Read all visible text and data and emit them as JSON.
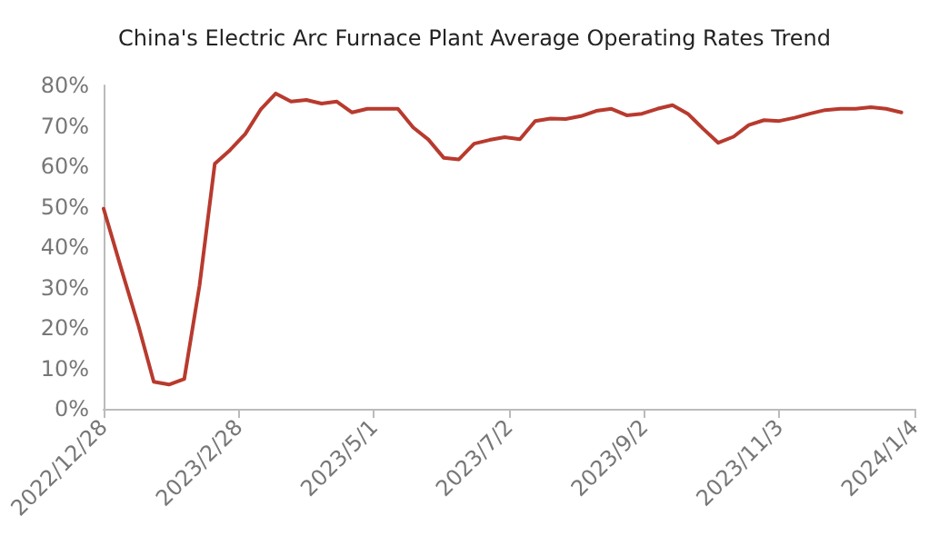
{
  "chart_data": {
    "type": "line",
    "title": "China's Electric Arc Furnace Plant Average Operating Rates Trend",
    "x": [
      "2022-12-28",
      "2023-01-06",
      "2023-01-13",
      "2023-01-20",
      "2023-01-27",
      "2023-02-03",
      "2023-02-10",
      "2023-02-17",
      "2023-02-24",
      "2023-03-03",
      "2023-03-10",
      "2023-03-17",
      "2023-03-24",
      "2023-03-31",
      "2023-04-07",
      "2023-04-14",
      "2023-04-21",
      "2023-04-28",
      "2023-05-05",
      "2023-05-12",
      "2023-05-19",
      "2023-05-26",
      "2023-06-02",
      "2023-06-09",
      "2023-06-16",
      "2023-06-23",
      "2023-06-30",
      "2023-07-07",
      "2023-07-14",
      "2023-07-21",
      "2023-07-28",
      "2023-08-04",
      "2023-08-11",
      "2023-08-18",
      "2023-08-25",
      "2023-09-01",
      "2023-09-08",
      "2023-09-15",
      "2023-09-22",
      "2023-09-29",
      "2023-10-06",
      "2023-10-13",
      "2023-10-20",
      "2023-10-27",
      "2023-11-03",
      "2023-11-10",
      "2023-11-17",
      "2023-11-24",
      "2023-12-01",
      "2023-12-08",
      "2023-12-15",
      "2023-12-22",
      "2023-12-29"
    ],
    "series": [
      {
        "color": "#b83a2e",
        "values": [
          49.5,
          33,
          20.5,
          6.7,
          6.0,
          7.4,
          30.5,
          60.6,
          64,
          68,
          74,
          78,
          76,
          76.4,
          75.5,
          76,
          73.3,
          74.2,
          74.2,
          74.2,
          69.6,
          66.6,
          62.1,
          61.7,
          65.6,
          66.5,
          67.2,
          66.7,
          71.2,
          71.8,
          71.7,
          72.4,
          73.7,
          74.2,
          72.6,
          73,
          74.2,
          75.1,
          73,
          69.3,
          65.8,
          67.3,
          70.2,
          71.4,
          71.2,
          72,
          73,
          73.9,
          74.2,
          74.2,
          74.6,
          74.2,
          73.3
        ]
      }
    ],
    "xlim": [
      "2022-12-28",
      "2024-01-04"
    ],
    "xticks": [
      {
        "value": "2022-12-28",
        "label": "2022/12/28"
      },
      {
        "value": "2023-02-28",
        "label": "2023/2/28"
      },
      {
        "value": "2023-05-01",
        "label": "2023/5/1"
      },
      {
        "value": "2023-07-02",
        "label": "2023/7/2"
      },
      {
        "value": "2023-09-02",
        "label": "2023/9/2"
      },
      {
        "value": "2023-11-03",
        "label": "2023/11/3"
      },
      {
        "value": "2024-01-04",
        "label": "2024/1/4"
      }
    ],
    "ylim": [
      0,
      80
    ],
    "yticks": [
      {
        "value": 0,
        "label": "0%"
      },
      {
        "value": 10,
        "label": "10%"
      },
      {
        "value": 20,
        "label": "20%"
      },
      {
        "value": 30,
        "label": "30%"
      },
      {
        "value": 40,
        "label": "40%"
      },
      {
        "value": 50,
        "label": "50%"
      },
      {
        "value": 60,
        "label": "60%"
      },
      {
        "value": 70,
        "label": "70%"
      },
      {
        "value": 80,
        "label": "80%"
      }
    ],
    "grid": false,
    "marker": "none",
    "line_style": "solid"
  }
}
